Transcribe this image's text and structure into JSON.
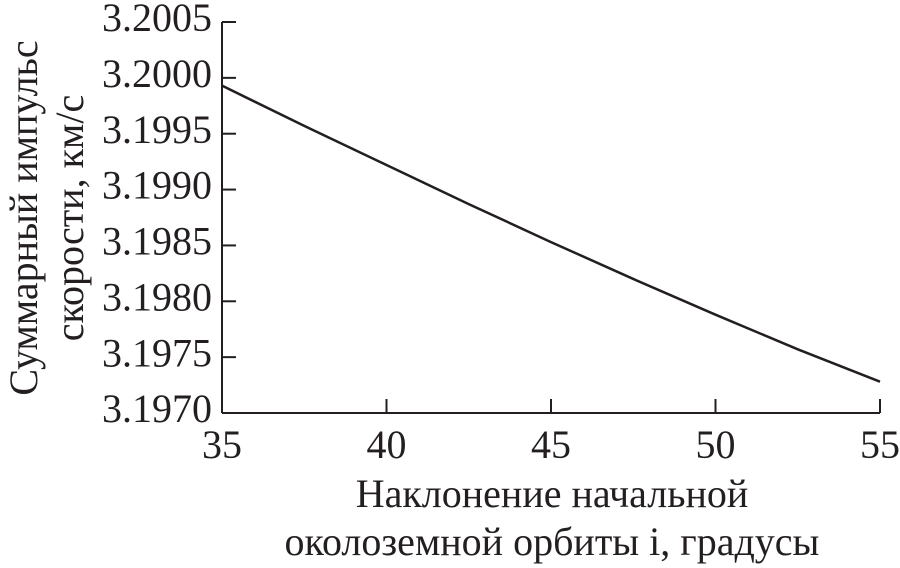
{
  "chart_data": {
    "type": "line",
    "xlabel": [
      "Наклонение начальной",
      "околоземной орбиты i, градусы"
    ],
    "ylabel": [
      "Суммарный импульс",
      "скорости, км/с"
    ],
    "x": [
      35,
      37.5,
      40,
      42.5,
      45,
      47.5,
      50,
      52.5,
      55
    ],
    "values": [
      3.19993,
      3.19957,
      3.19922,
      3.19887,
      3.19853,
      3.1982,
      3.19788,
      3.19757,
      3.19728
    ],
    "color": "#231f20",
    "xlim": [
      35,
      55
    ],
    "xticks": [
      35,
      40,
      45,
      50,
      55
    ],
    "ylim": [
      3.197,
      3.2005
    ],
    "yticks": [
      {
        "value": 3.197,
        "label": "3.1970"
      },
      3.1975,
      {
        "value": 3.198,
        "label": "3.1980"
      },
      3.1985,
      {
        "value": 3.199,
        "label": "3.1990"
      },
      3.1995,
      {
        "value": 3.2,
        "label": "3.2000"
      },
      3.2005
    ],
    "grid": false
  }
}
